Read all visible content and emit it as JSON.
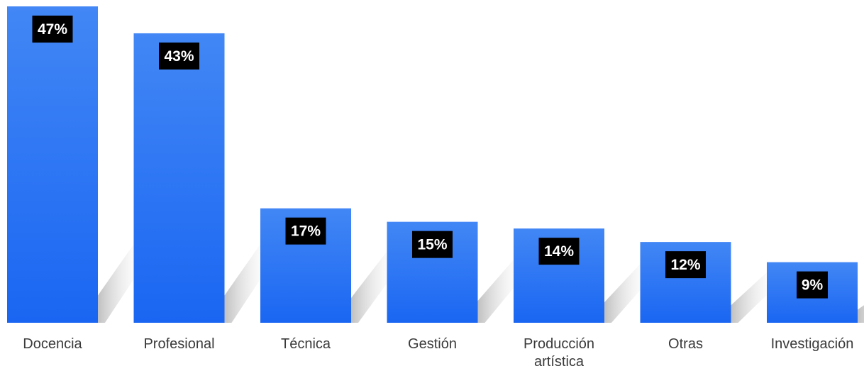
{
  "chart_data": {
    "type": "bar",
    "categories": [
      "Docencia",
      "Profesional",
      "Técnica",
      "Gestión",
      "Producción artística",
      "Otras",
      "Investigación"
    ],
    "values": [
      47,
      43,
      17,
      15,
      14,
      12,
      9
    ],
    "value_labels": [
      "47%",
      "43%",
      "17%",
      "15%",
      "14%",
      "12%",
      "9%"
    ],
    "unit": "%",
    "ylim": [
      0,
      47
    ],
    "grid": false,
    "legend": "none",
    "colors": {
      "bar_top": "#4287f5",
      "bar_bottom": "#1a66f2",
      "label_box": "#000000",
      "label_text": "#ffffff",
      "category_text": "#3a3a3a",
      "shadow": "#bdbdbd"
    }
  }
}
